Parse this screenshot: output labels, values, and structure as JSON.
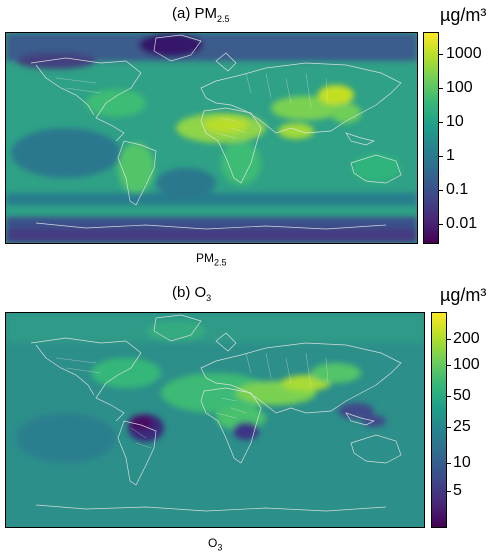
{
  "panels": [
    {
      "title_main": "(a) PM",
      "title_sub": "2.5",
      "caption_main": "PM",
      "caption_sub": "2.5",
      "colorbar_unit": "µg/m³",
      "colorbar_ticks": [
        "1000",
        "100",
        "10",
        "1",
        "0.1",
        "0.01"
      ],
      "colormap": "viridis",
      "background_color": "#2fa186"
    },
    {
      "title_main": "(b) O",
      "title_sub": "3",
      "caption_main": "O",
      "caption_sub": "3",
      "colorbar_unit": "µg/m³",
      "colorbar_ticks": [
        "200",
        "100",
        "50",
        "25",
        "10",
        "5"
      ],
      "colormap": "viridis",
      "background_color": "#2c8f8a"
    }
  ]
}
